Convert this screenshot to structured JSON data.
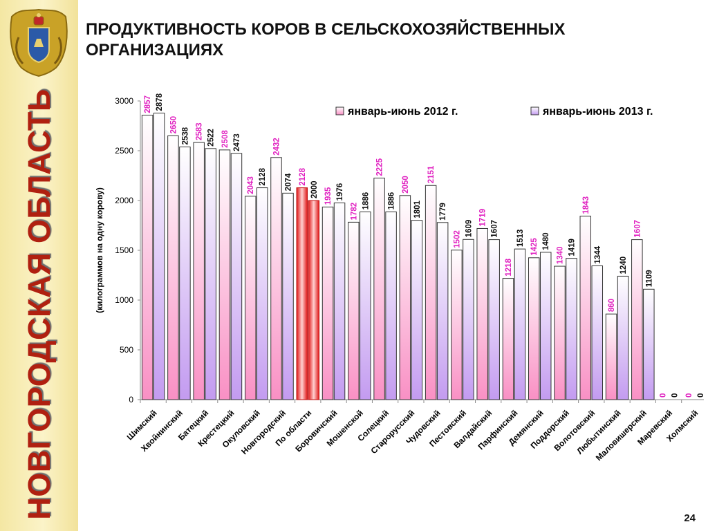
{
  "side_title": "НОВГОРОДСКАЯ ОБЛАСТЬ",
  "title": "ПРОДУКТИВНОСТЬ КОРОВ В СЕЛЬСКОХОЗЯЙСТВЕННЫХ ОРГАНИЗАЦИЯХ",
  "page_number": "24",
  "colors": {
    "sidebar": "#f4e7a3",
    "side_title": "#b02010",
    "label_2012": "#e020c0",
    "label_2013": "#111111"
  },
  "chart_data": {
    "type": "bar",
    "ylabel": "(килограммов на одну корову)",
    "ylim": [
      0,
      3000
    ],
    "yticks": [
      0,
      500,
      1000,
      1500,
      2000,
      2500,
      3000
    ],
    "legend_position": "top-right",
    "categories": [
      "Шимский",
      "Хвойнинский",
      "Батецкий",
      "Крестецкий",
      "Окуловский",
      "Новгородский",
      "По области",
      "Боровичский",
      "Мошенской",
      "Солецкий",
      "Старорусский",
      "Чудовский",
      "Пестовский",
      "Валдайский",
      "Парфинский",
      "Демянский",
      "Поддорский",
      "Волотовский",
      "Любытинский",
      "Маловишерский",
      "Маревский",
      "Холмский"
    ],
    "highlight_category": "По области",
    "series": [
      {
        "name": "январь-июнь 2012 г.",
        "values": [
          2857,
          2650,
          2583,
          2508,
          2043,
          2432,
          2128,
          1935,
          1782,
          2225,
          2050,
          2151,
          1502,
          1719,
          1218,
          1425,
          1340,
          1843,
          860,
          1607,
          0,
          0
        ]
      },
      {
        "name": "январь-июнь 2013 г.",
        "values": [
          2878,
          2538,
          2522,
          2473,
          2128,
          2074,
          2000,
          1976,
          1886,
          1886,
          1801,
          1779,
          1609,
          1607,
          1513,
          1480,
          1419,
          1344,
          1240,
          1109,
          0,
          0
        ]
      }
    ]
  }
}
